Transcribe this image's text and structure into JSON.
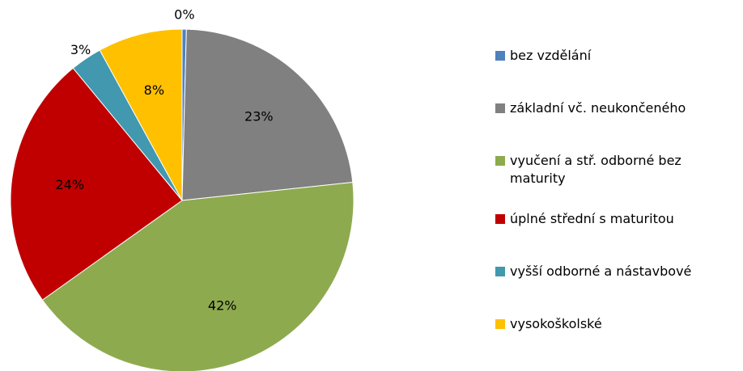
{
  "chart_data": {
    "type": "pie",
    "categories": [
      "bez vzdělání",
      "základní vč. neukončeného",
      "vyučení a stř. odborné bez maturity",
      "úplné střední s maturitou",
      "vyšší odborné a nástavbové",
      "vysokoškolské"
    ],
    "values": [
      0.4,
      23,
      42,
      24,
      3,
      8
    ],
    "value_labels": [
      "0%",
      "23%",
      "42%",
      "24%",
      "3%",
      "8%"
    ],
    "colors": [
      "#4f81bd",
      "#808080",
      "#8eaa4f",
      "#c00000",
      "#4198af",
      "#ffc000"
    ],
    "legend": "right"
  }
}
